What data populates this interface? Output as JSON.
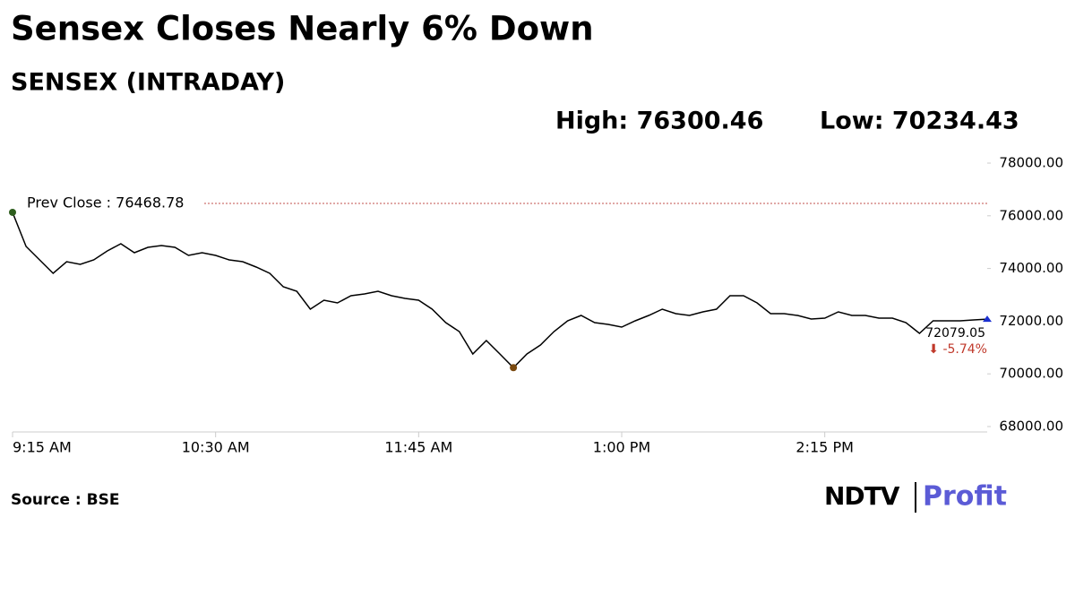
{
  "chart_data": {
    "type": "line",
    "title": "Sensex Closes Nearly 6% Down",
    "subtitle": "SENSEX (INTRADAY)",
    "high_label": "High: 76300.46",
    "low_label": "Low: 70234.43",
    "prev_close": {
      "value": 76468.78,
      "label": "Prev Close : 76468.78"
    },
    "change_label": "⬇ -5.74%",
    "source": "Source : BSE",
    "logo": [
      "NDTV",
      "Profit"
    ],
    "color": "#000000",
    "x": [
      "9:15 AM",
      "9:20 AM",
      "9:25 AM",
      "9:30 AM",
      "9:35 AM",
      "9:40 AM",
      "9:45 AM",
      "9:50 AM",
      "9:55 AM",
      "10:00 AM",
      "10:05 AM",
      "10:10 AM",
      "10:15 AM",
      "10:20 AM",
      "10:25 AM",
      "10:30 AM",
      "10:35 AM",
      "10:40 AM",
      "10:45 AM",
      "10:50 AM",
      "10:55 AM",
      "11:00 AM",
      "11:05 AM",
      "11:10 AM",
      "11:15 AM",
      "11:20 AM",
      "11:25 AM",
      "11:30 AM",
      "11:35 AM",
      "11:40 AM",
      "11:45 AM",
      "11:50 AM",
      "11:55 AM",
      "12:00 PM",
      "12:05 PM",
      "12:10 PM",
      "12:15 PM",
      "12:20 PM",
      "12:25 PM",
      "12:30 PM",
      "12:35 PM",
      "12:40 PM",
      "12:45 PM",
      "12:50 PM",
      "12:55 PM",
      "1:00 PM",
      "1:05 PM",
      "1:10 PM",
      "1:15 PM",
      "1:20 PM",
      "1:25 PM",
      "1:30 PM",
      "1:35 PM",
      "1:40 PM",
      "1:45 PM",
      "1:50 PM",
      "1:55 PM",
      "2:00 PM",
      "2:05 PM",
      "2:10 PM",
      "2:15 PM",
      "2:20 PM",
      "2:25 PM",
      "2:30 PM",
      "2:35 PM",
      "2:40 PM",
      "2:45 PM",
      "2:50 PM",
      "2:55 PM",
      "3:00 PM",
      "3:05 PM",
      "3:10 PM",
      "3:15 PM"
    ],
    "values": [
      76130,
      74837,
      74327,
      73817,
      74259,
      74157,
      74327,
      74667,
      74939,
      74599,
      74803,
      74871,
      74803,
      74497,
      74599,
      74497,
      74327,
      74259,
      74055,
      73817,
      73307,
      73137,
      72456,
      72796,
      72694,
      72966,
      73034,
      73137,
      72966,
      72864,
      72796,
      72456,
      71946,
      71606,
      70756,
      71266,
      70756,
      70234.43,
      70756,
      71096,
      71606,
      72014,
      72218,
      71946,
      71878,
      71776,
      72014,
      72218,
      72456,
      72286,
      72218,
      72354,
      72456,
      72966,
      72966,
      72694,
      72286,
      72286,
      72218,
      72082,
      72116,
      72354,
      72218,
      72218,
      72116,
      72116,
      71946,
      71538,
      72014,
      72014,
      72014,
      72048,
      72079.05
    ],
    "xlim": [
      "9:15 AM",
      "3:15 PM"
    ],
    "xticks": [
      "9:15 AM",
      "10:30 AM",
      "11:45 AM",
      "1:00 PM",
      "2:15 PM"
    ],
    "ylim": [
      68000,
      78000
    ],
    "yticks": [
      {
        "value": 68000,
        "label": "68000.00"
      },
      {
        "value": 70000,
        "label": "70000.00"
      },
      {
        "value": 72000,
        "label": "72000.00"
      },
      {
        "value": 74000,
        "label": "74000.00"
      },
      {
        "value": 76000,
        "label": "76000.00"
      },
      {
        "value": 78000,
        "label": "78000.00"
      }
    ]
  }
}
